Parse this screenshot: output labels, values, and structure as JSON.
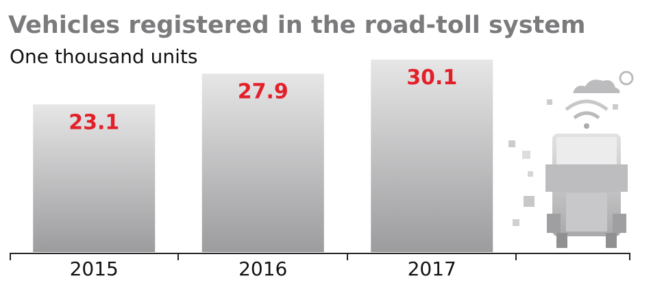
{
  "chart_data": {
    "type": "bar",
    "title": "Vehicles registered in the road-toll system",
    "subtitle": "One thousand units",
    "categories": [
      "2015",
      "2016",
      "2017"
    ],
    "values": [
      23.1,
      27.9,
      30.1
    ]
  }
}
